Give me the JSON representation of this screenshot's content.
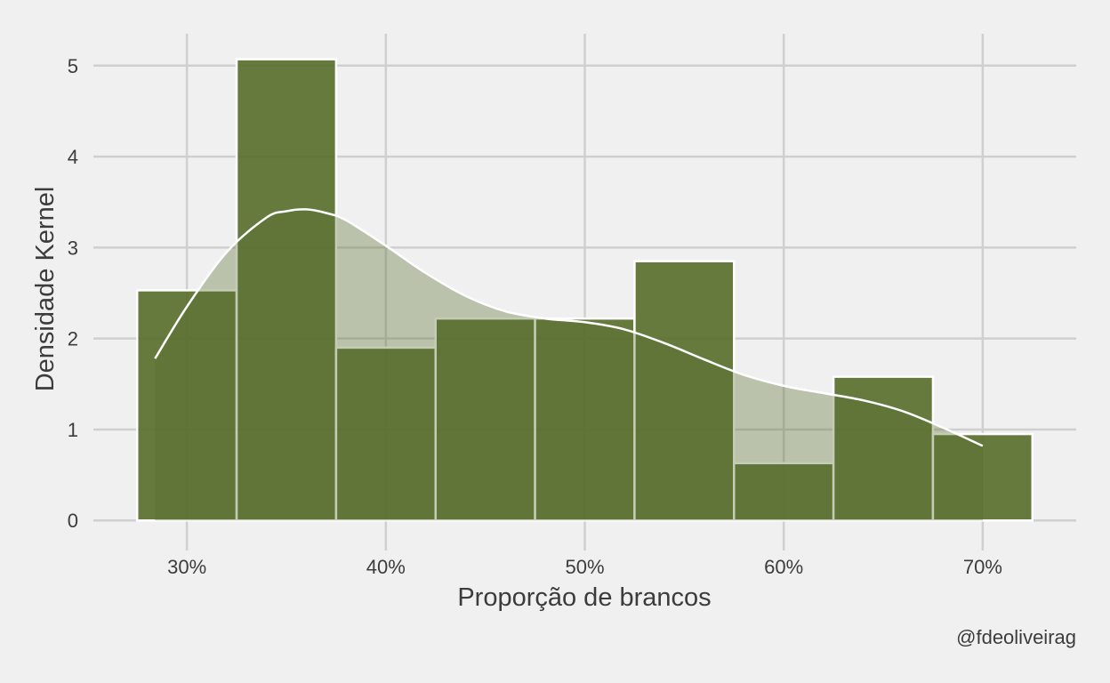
{
  "chart_data": {
    "type": "bar",
    "subtype": "histogram with kernel density estimate",
    "xlabel": "Proporção de brancos",
    "ylabel": "Densidade Kernel",
    "caption": "@fdeoliveirag",
    "xlim": [
      25.3,
      74.7
    ],
    "ylim": [
      -0.33,
      5.35
    ],
    "x_ticks": [
      30,
      40,
      50,
      60,
      70
    ],
    "x_tick_labels": [
      "30%",
      "40%",
      "50%",
      "60%",
      "70%"
    ],
    "y_ticks": [
      0,
      1,
      2,
      3,
      4,
      5
    ],
    "y_tick_labels": [
      "0",
      "1",
      "2",
      "3",
      "4",
      "5"
    ],
    "grid": true,
    "legend": "none",
    "bins": [
      {
        "x0": 27.5,
        "x1": 32.5,
        "value": 2.53
      },
      {
        "x0": 32.5,
        "x1": 37.5,
        "value": 5.07
      },
      {
        "x0": 37.5,
        "x1": 42.5,
        "value": 1.9
      },
      {
        "x0": 42.5,
        "x1": 47.5,
        "value": 2.22
      },
      {
        "x0": 47.5,
        "x1": 52.5,
        "value": 2.22
      },
      {
        "x0": 52.5,
        "x1": 57.5,
        "value": 2.85
      },
      {
        "x0": 57.5,
        "x1": 62.5,
        "value": 0.63
      },
      {
        "x0": 62.5,
        "x1": 67.5,
        "value": 1.58
      },
      {
        "x0": 67.5,
        "x1": 72.5,
        "value": 0.95
      }
    ],
    "kde": {
      "x": [
        28.4,
        30,
        32,
        34,
        35,
        36,
        37,
        38,
        40,
        42,
        44,
        46,
        48,
        50,
        52,
        54,
        56,
        58,
        60,
        62,
        64,
        66,
        68,
        70
      ],
      "y": [
        1.78,
        2.35,
        2.95,
        3.33,
        3.4,
        3.42,
        3.38,
        3.3,
        3.02,
        2.72,
        2.47,
        2.3,
        2.22,
        2.18,
        2.1,
        1.95,
        1.77,
        1.6,
        1.48,
        1.4,
        1.32,
        1.2,
        1.02,
        0.82
      ]
    },
    "colors": {
      "bar_fill": "#566d2a",
      "bar_stroke": "#ffffff",
      "kde_fill": "#566d2a",
      "kde_line": "#ffffff",
      "grid": "#cfcfcf",
      "background": "#f0f0f0",
      "text": "#3c3c3c"
    }
  }
}
